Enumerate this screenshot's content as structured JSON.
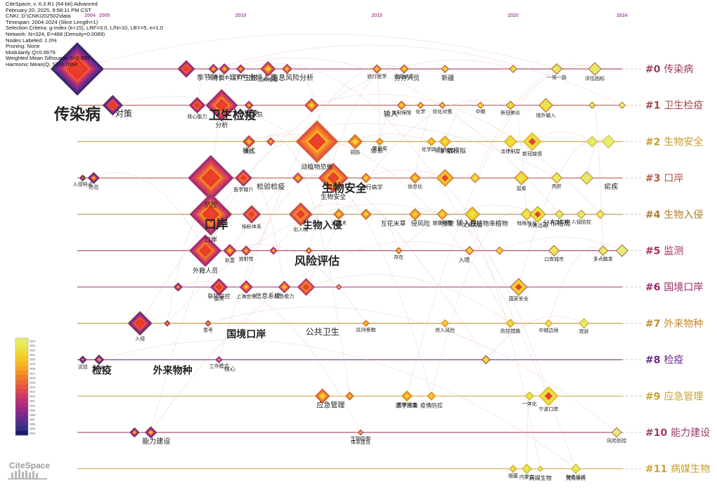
{
  "header": {
    "lines": [
      "CiteSpace, v. 6.3.R1 (64-bit) Advanced",
      "February 20, 2025, 9:58:11 PM CST",
      "CNKI: D:\\CNKI202502\\data",
      "Timespan: 2004-2024 (Slice Length=1)",
      "Selection Criteria: g-index (k=15), LRF=3.0, L/N=10, LBY=5, e=1.0",
      "Network: N=324, E=468 (Density=0.0089)",
      "Nodes Labeled: 1.0%",
      "Pruning: None",
      "Modularity Q=0.6679",
      "Weighted Mean Silhouette S=0.899",
      "Harmonic Mean(Q, S)=0.7654"
    ]
  },
  "logo": {
    "text": "CiteSpace"
  },
  "colors": {
    "c0": "#9b3b56",
    "c1": "#a04848",
    "c2": "#c69a2e",
    "c3": "#b05a4a",
    "c4": "#b07a2a",
    "c5": "#a4305a",
    "c6": "#9a2a6a",
    "c7": "#c08a2a",
    "c8": "#6a2a8a",
    "c9": "#c9a231",
    "c10": "#a03a6a",
    "c11": "#c8a032"
  },
  "chart_data": {
    "type": "timeline",
    "x_range": [
      2004,
      2024
    ],
    "x_ticks": [
      "2004",
      "2005",
      "2010",
      "2015",
      "2020",
      "2024"
    ],
    "legend": {
      "placement": "bottom-left",
      "years": [
        "2024",
        "2023",
        "2022",
        "2021",
        "2020",
        "2019",
        "2018",
        "2017",
        "2016",
        "2015",
        "2014",
        "2013",
        "2012",
        "2011",
        "2010",
        "2009",
        "2008",
        "2007",
        "2006",
        "2005",
        "2004"
      ]
    },
    "clusters": [
      {
        "id": "#0",
        "label": "传染病"
      },
      {
        "id": "#1",
        "label": "卫生检疫"
      },
      {
        "id": "#2",
        "label": "生物安全"
      },
      {
        "id": "#3",
        "label": "口岸"
      },
      {
        "id": "#4",
        "label": "生物入侵"
      },
      {
        "id": "#5",
        "label": "监测"
      },
      {
        "id": "#6",
        "label": "国境口岸"
      },
      {
        "id": "#7",
        "label": "外来物种"
      },
      {
        "id": "#8",
        "label": "检疫"
      },
      {
        "id": "#9",
        "label": "应急管理"
      },
      {
        "id": "#10",
        "label": "能力建设"
      },
      {
        "id": "#11",
        "label": "病媒生物"
      }
    ],
    "nodes": [
      {
        "c": 0,
        "year": 2004,
        "s": 5,
        "label": "传染病"
      },
      {
        "c": 0,
        "year": 2008,
        "s": 1.6
      },
      {
        "c": 0,
        "year": 2009,
        "s": 0.9,
        "label": "密度"
      },
      {
        "c": 0,
        "year": 2009.4,
        "s": 1.0,
        "label": "日本"
      },
      {
        "c": 0,
        "year": 2010,
        "s": 0.8,
        "label": "宣传"
      },
      {
        "c": 0,
        "year": 2011,
        "s": 1.4,
        "label": "口岸检疫"
      },
      {
        "c": 0,
        "year": 2011.7,
        "s": 0.9
      },
      {
        "c": 0,
        "year": 2015,
        "s": 0.8,
        "label": "旅行医学"
      },
      {
        "c": 0,
        "year": 2016,
        "s": 0.8,
        "label": "丙肝病毒"
      },
      {
        "c": 0,
        "year": 2017.5,
        "s": 0.7
      },
      {
        "c": 0,
        "year": 2020,
        "s": 0.7
      },
      {
        "c": 0,
        "year": 2021.6,
        "s": 1.0,
        "label": "一带一路"
      },
      {
        "c": 0,
        "year": 2023,
        "s": 1.2,
        "label": "评估指标"
      },
      {
        "c": 1,
        "year": 2005.3,
        "s": 1.9
      },
      {
        "c": 1,
        "year": 2008.4,
        "s": 1.5,
        "label": "核心能力"
      },
      {
        "c": 1,
        "year": 2009.3,
        "s": 3.0,
        "label": "分析"
      },
      {
        "c": 1,
        "year": 2010.3,
        "s": 0.8,
        "label": "埃及口岸"
      },
      {
        "c": 1,
        "year": 2012.6,
        "s": 1.3
      },
      {
        "c": 1,
        "year": 2015.9,
        "s": 0.8,
        "label": "体制保障"
      },
      {
        "c": 1,
        "year": 2016.6,
        "s": 0.6,
        "label": "化学"
      },
      {
        "c": 1,
        "year": 2017.4,
        "s": 0.6,
        "label": "优化对策"
      },
      {
        "c": 1,
        "year": 2018.8,
        "s": 0.6,
        "label": "中期"
      },
      {
        "c": 1,
        "year": 2019.9,
        "s": 0.8,
        "label": "新冠肺炎"
      },
      {
        "c": 1,
        "year": 2021.2,
        "s": 1.3,
        "label": "境外输入"
      },
      {
        "c": 1,
        "year": 2022.9,
        "s": 0.6
      },
      {
        "c": 1,
        "year": 2024,
        "s": 0.6
      },
      {
        "c": 2,
        "year": 2010.3,
        "s": 1.2,
        "label": "流行"
      },
      {
        "c": 2,
        "year": 2011.1,
        "s": 0.8
      },
      {
        "c": 2,
        "year": 2012.8,
        "s": 4.0,
        "label": "动植物恐怖"
      },
      {
        "c": 2,
        "year": 2014.2,
        "s": 1.4,
        "label": "预防"
      },
      {
        "c": 2,
        "year": 2015.1,
        "s": 0.7,
        "label": "黄热病"
      },
      {
        "c": 2,
        "year": 2017.0,
        "s": 0.8,
        "label": "化学因子"
      },
      {
        "c": 2,
        "year": 2017.5,
        "s": 1.1,
        "label": "高斯模型"
      },
      {
        "c": 2,
        "year": 2019.9,
        "s": 1.2,
        "label": "法律制度"
      },
      {
        "c": 2,
        "year": 2020.7,
        "s": 1.7,
        "label": "新冠疫情"
      },
      {
        "c": 2,
        "year": 2022.9,
        "s": 1.0
      },
      {
        "c": 2,
        "year": 2023.5,
        "s": 1.2
      },
      {
        "c": 3,
        "year": 2004.2,
        "s": 0.6,
        "label": "入侵特点"
      },
      {
        "c": 3,
        "year": 2004.6,
        "s": 1.1,
        "label": "防范"
      },
      {
        "c": 3,
        "year": 2008.9,
        "s": 4.3,
        "label": "防控"
      },
      {
        "c": 3,
        "year": 2010.1,
        "s": 1.6,
        "label": "医学媒介"
      },
      {
        "c": 3,
        "year": 2012.1,
        "s": 1.0
      },
      {
        "c": 3,
        "year": 2013.4,
        "s": 2.8,
        "label": "生物安全"
      },
      {
        "c": 3,
        "year": 2014.6,
        "s": 0.9
      },
      {
        "c": 3,
        "year": 2016.4,
        "s": 1.0,
        "label": "信息化"
      },
      {
        "c": 3,
        "year": 2017.5,
        "s": 1.6
      },
      {
        "c": 3,
        "year": 2018.6,
        "s": 0.9
      },
      {
        "c": 3,
        "year": 2020.3,
        "s": 1.3,
        "label": "鼠疫"
      },
      {
        "c": 3,
        "year": 2021.6,
        "s": 1.0,
        "label": "丙肝"
      },
      {
        "c": 3,
        "year": 2022.7,
        "s": 1.2
      },
      {
        "c": 4,
        "year": 2008.9,
        "s": 4.0,
        "label": "口岸"
      },
      {
        "c": 4,
        "year": 2010.4,
        "s": 1.7,
        "label": "指标体系"
      },
      {
        "c": 4,
        "year": 2012.2,
        "s": 2.2,
        "label": "出入境"
      },
      {
        "c": 4,
        "year": 2013.6,
        "s": 1.0,
        "label": "3s技术"
      },
      {
        "c": 4,
        "year": 2014.6,
        "s": 1.0
      },
      {
        "c": 4,
        "year": 2016.4,
        "s": 1.1
      },
      {
        "c": 4,
        "year": 2017.4,
        "s": 1.0,
        "label": "健康地图"
      },
      {
        "c": 4,
        "year": 2018.5,
        "s": 1.4,
        "label": "二次入侵"
      },
      {
        "c": 4,
        "year": 2020.5,
        "s": 1.1,
        "label": "特殊物品"
      },
      {
        "c": 4,
        "year": 2020.9,
        "s": 1.5,
        "label": "人类活动"
      },
      {
        "c": 4,
        "year": 2021.7,
        "s": 0.8,
        "label": "人工引种"
      },
      {
        "c": 4,
        "year": 2022.5,
        "s": 0.8,
        "label": "入侵防控"
      },
      {
        "c": 4,
        "year": 2023.2,
        "s": 0.8
      },
      {
        "c": 5,
        "year": 2008.7,
        "s": 3.0,
        "label": "外籍人员"
      },
      {
        "c": 5,
        "year": 2009.6,
        "s": 1.2,
        "label": "处置"
      },
      {
        "c": 5,
        "year": 2010.2,
        "s": 0.9,
        "label": "放射性"
      },
      {
        "c": 5,
        "year": 2011.2,
        "s": 0.7
      },
      {
        "c": 5,
        "year": 2012.5,
        "s": 0.6
      },
      {
        "c": 5,
        "year": 2015.8,
        "s": 0.6,
        "label": "存在"
      },
      {
        "c": 5,
        "year": 2018.4,
        "s": 0.8
      },
      {
        "c": 5,
        "year": 2019.5,
        "s": 0.7
      },
      {
        "c": 5,
        "year": 2021.5,
        "s": 1.0,
        "label": "口岸城市"
      },
      {
        "c": 5,
        "year": 2023.3,
        "s": 0.9,
        "label": "多点触发"
      },
      {
        "c": 5,
        "year": 2024,
        "s": 1.1
      },
      {
        "c": 6,
        "year": 2007.7,
        "s": 0.8
      },
      {
        "c": 6,
        "year": 2009.2,
        "s": 1.6,
        "label": "监测"
      },
      {
        "c": 6,
        "year": 2010.2,
        "s": 1.2,
        "label": "上海世博"
      },
      {
        "c": 6,
        "year": 2011.6,
        "s": 1.1,
        "label": "应急能力"
      },
      {
        "c": 6,
        "year": 2012.4,
        "s": 1.6
      },
      {
        "c": 6,
        "year": 2013.6,
        "s": 0.5
      },
      {
        "c": 6,
        "year": 2020.2,
        "s": 1.6,
        "label": "国家安全"
      },
      {
        "c": 7,
        "year": 2006.3,
        "s": 2.3,
        "label": "入侵"
      },
      {
        "c": 7,
        "year": 2007.3,
        "s": 0.6
      },
      {
        "c": 7,
        "year": 2008.8,
        "s": 0.6,
        "label": "思考"
      },
      {
        "c": 7,
        "year": 2014.6,
        "s": 0.6,
        "label": "区间参数"
      },
      {
        "c": 7,
        "year": 2017.5,
        "s": 0.7,
        "label": "传入风险"
      },
      {
        "c": 7,
        "year": 2019.9,
        "s": 0.8,
        "label": "防控措施"
      },
      {
        "c": 7,
        "year": 2021.3,
        "s": 0.7,
        "label": "中越边境"
      },
      {
        "c": 7,
        "year": 2022.6,
        "s": 0.9,
        "label": "现状"
      },
      {
        "c": 8,
        "year": 2004.2,
        "s": 0.7,
        "label": "试验"
      },
      {
        "c": 8,
        "year": 2004.8,
        "s": 0.9,
        "label": "检测"
      },
      {
        "c": 8,
        "year": 2009.2,
        "s": 0.6,
        "label": "工作模式"
      },
      {
        "c": 8,
        "year": 2019.0,
        "s": 0.8
      },
      {
        "c": 9,
        "year": 2013.0,
        "s": 1.4
      },
      {
        "c": 9,
        "year": 2014.0,
        "s": 0.8
      },
      {
        "c": 9,
        "year": 2016.1,
        "s": 1.0,
        "label": "医学排查"
      },
      {
        "c": 9,
        "year": 2017.0,
        "s": 0.8
      },
      {
        "c": 9,
        "year": 2020.6,
        "s": 0.8,
        "label": "一体化"
      },
      {
        "c": 9,
        "year": 2021.3,
        "s": 1.8,
        "label": "宁波口岸"
      },
      {
        "c": 10,
        "year": 2006.1,
        "s": 0.9
      },
      {
        "c": 10,
        "year": 2006.7,
        "s": 1.1
      },
      {
        "c": 10,
        "year": 2014.4,
        "s": 0.5,
        "label": "生物防御"
      },
      {
        "c": 10,
        "year": 2023.8,
        "s": 0.9,
        "label": "风险防控"
      },
      {
        "c": 11,
        "year": 2020.0,
        "s": 0.7,
        "label": "细菌"
      },
      {
        "c": 11,
        "year": 2020.5,
        "s": 0.9,
        "label": "内蒙古"
      },
      {
        "c": 11,
        "year": 2021.0,
        "s": 0.5
      },
      {
        "c": 11,
        "year": 2022.3,
        "s": 0.9,
        "label": "种类组成"
      }
    ],
    "big_labels": [
      {
        "c": 0,
        "year": 2008.9,
        "t": "季节消长",
        "fs": 10
      },
      {
        "c": 0,
        "year": 2010.1,
        "t": "媒介生物",
        "fs": 10
      },
      {
        "c": 0,
        "year": 2010.8,
        "t": "出境人员",
        "fs": 10
      },
      {
        "c": 0,
        "year": 2011.9,
        "t": "信息风险分析",
        "fs": 10
      },
      {
        "c": 0,
        "year": 2016.1,
        "t": "劳务人员",
        "fs": 9
      },
      {
        "c": 0,
        "year": 2017.6,
        "t": "新疆",
        "fs": 9
      },
      {
        "c": 1,
        "year": 2005.7,
        "t": "对策",
        "fs": 12
      },
      {
        "c": 1,
        "year": 2010.4,
        "t": "入境人员",
        "fs": 8
      },
      {
        "c": 1,
        "year": 2015.5,
        "t": "输入",
        "fs": 10
      },
      {
        "c": 1,
        "year": 2009.7,
        "t": "卫生检疫",
        "fs": 17
      },
      {
        "c": 2,
        "year": 2010.3,
        "t": "模式",
        "fs": 9
      },
      {
        "c": 2,
        "year": 2015.0,
        "t": "体系",
        "fs": 9
      },
      {
        "c": 2,
        "year": 2017.8,
        "t": "扩散模拟",
        "fs": 9
      },
      {
        "c": 3,
        "year": 2011.1,
        "t": "检验检疫",
        "fs": 10
      },
      {
        "c": 3,
        "year": 2013.8,
        "t": "生物安全",
        "fs": 16
      },
      {
        "c": 3,
        "year": 2014.8,
        "t": "流行病学",
        "fs": 8
      },
      {
        "c": 3,
        "year": 2023.6,
        "t": "疟疾",
        "fs": 10
      },
      {
        "c": 4,
        "year": 2009.1,
        "t": "口岸",
        "fs": 17
      },
      {
        "c": 4,
        "year": 2013.0,
        "t": "生物入侵",
        "fs": 14
      },
      {
        "c": 4,
        "year": 2015.6,
        "t": "互花米草",
        "fs": 9
      },
      {
        "c": 4,
        "year": 2016.6,
        "t": "侵风险",
        "fs": 9
      },
      {
        "c": 4,
        "year": 2018.3,
        "t": "输入性",
        "fs": 10
      },
      {
        "c": 4,
        "year": 2017.6,
        "t": "预警",
        "fs": 9
      },
      {
        "c": 4,
        "year": 2019.0,
        "t": "入侵植物来植物",
        "fs": 9
      },
      {
        "c": 4,
        "year": 2021.6,
        "t": "分布格局",
        "fs": 10
      },
      {
        "c": 5,
        "year": 2012.8,
        "t": "风险评估",
        "fs": 16
      },
      {
        "c": 5,
        "year": 2018.2,
        "t": "入境",
        "fs": 8
      },
      {
        "c": 6,
        "year": 2011.0,
        "t": "信息系统",
        "fs": 9
      },
      {
        "c": 6,
        "year": 2009.2,
        "t": "联防联控",
        "fs": 8
      },
      {
        "c": 7,
        "year": 2010.2,
        "t": "国境口岸",
        "fs": 14
      },
      {
        "c": 7,
        "year": 2013.0,
        "t": "公共卫生",
        "fs": 12
      },
      {
        "c": 8,
        "year": 2007.5,
        "t": "外来物种",
        "fs": 14
      },
      {
        "c": 8,
        "year": 2009.6,
        "t": "核心",
        "fs": 8
      },
      {
        "c": 8,
        "year": 2004.9,
        "t": "检疫",
        "fs": 14
      },
      {
        "c": 9,
        "year": 2016.1,
        "t": "医学巡查",
        "fs": 8
      },
      {
        "c": 9,
        "year": 2017.0,
        "t": "疫情防控",
        "fs": 8
      },
      {
        "c": 9,
        "year": 2013.3,
        "t": "应急管理",
        "fs": 10
      },
      {
        "c": 10,
        "year": 2006.9,
        "t": "能力建设",
        "fs": 10
      },
      {
        "c": 10,
        "year": 2014.4,
        "t": "体系建设",
        "fs": 7
      },
      {
        "c": 11,
        "year": 2021.0,
        "t": "病媒生物",
        "fs": 8
      },
      {
        "c": 11,
        "year": 2022.3,
        "t": "风险评价",
        "fs": 7
      }
    ]
  }
}
